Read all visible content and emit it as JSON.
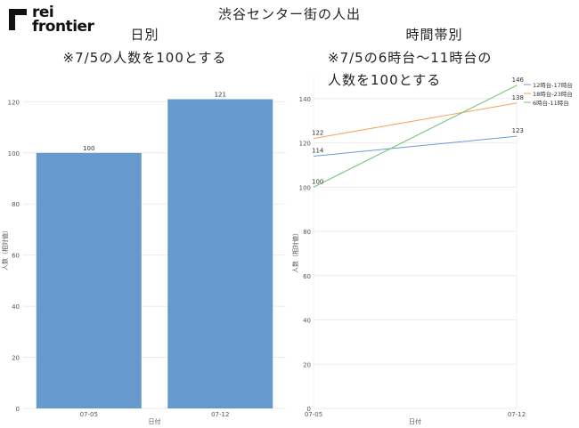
{
  "brand": {
    "line1": "rei",
    "line2": "frontier"
  },
  "title": "渋谷センター街の人出",
  "left_panel": {
    "title": "日別",
    "note": "※7/5の人数を100とする"
  },
  "right_panel": {
    "title": "時間帯別",
    "note_line1": "※7/5の6時台～11時台の",
    "note_line2": "人数を100とする"
  },
  "colors": {
    "bar": "#6699cc",
    "series": [
      "#6a9bd1",
      "#f5a35a",
      "#6cc06c"
    ]
  },
  "chart_data": [
    {
      "type": "bar",
      "categories": [
        "07-05",
        "07-12"
      ],
      "values": [
        100,
        121
      ],
      "xlabel": "日付",
      "ylabel": "人数（相対値）",
      "ylim": [
        0,
        125
      ],
      "yticks": [
        0,
        20,
        40,
        60,
        80,
        100,
        120
      ]
    },
    {
      "type": "line",
      "x": [
        "07-05",
        "07-12"
      ],
      "series": [
        {
          "name": "12時台-17時台",
          "values": [
            114,
            123
          ]
        },
        {
          "name": "18時台-23時台",
          "values": [
            122,
            138
          ]
        },
        {
          "name": "6時台-11時台",
          "values": [
            100,
            146
          ]
        }
      ],
      "xlabel": "日付",
      "ylabel": "人数（相対値）",
      "ylim": [
        0,
        150
      ],
      "yticks": [
        0,
        20,
        40,
        60,
        80,
        100,
        120,
        140
      ],
      "legend": "top-right"
    }
  ]
}
